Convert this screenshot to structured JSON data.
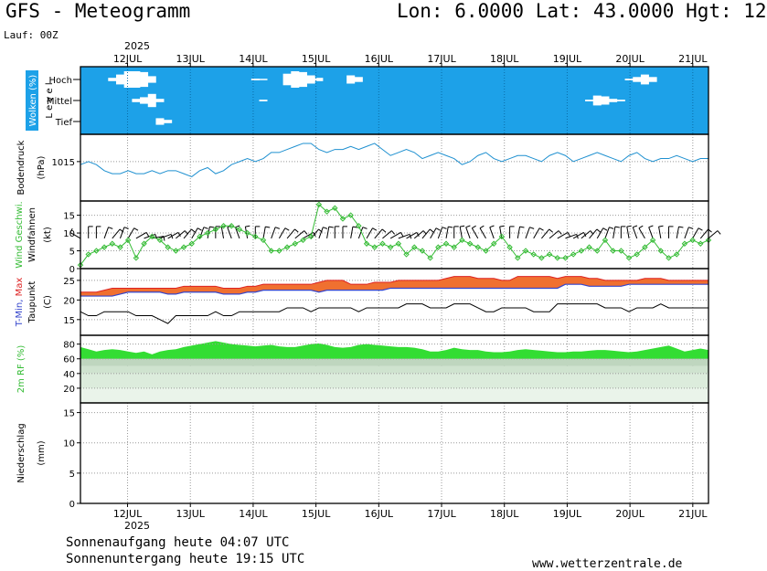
{
  "header": {
    "title": "GFS - Meteogramm",
    "location": "Lon: 6.0000  Lat: 43.0000  Hgt: 12",
    "run": "Lauf: 00Z",
    "year": "2025"
  },
  "footer": {
    "sunrise": "Sonnenaufgang heute 04:07 UTC",
    "sunset": "Sonnenuntergang heute 19:15 UTC",
    "site": "www.wetterzentrale.de"
  },
  "colors": {
    "cloud_bg": "#1da1e8",
    "pressure_line": "#1e90d0",
    "wind_line": "#33bb33",
    "tmax_fill": "#f07030",
    "tmin_line": "#3344cc",
    "tmax_line": "#dd2222",
    "dewpoint_line": "#000000",
    "humidity_fill": "#33dd33",
    "grid": "#999999"
  },
  "chart_data": {
    "type": "line",
    "x_axis": {
      "dates": [
        "12JUL",
        "13JUL",
        "14JUL",
        "15JUL",
        "16JUL",
        "17JUL",
        "18JUL",
        "19JUL",
        "20JUL",
        "21JUL"
      ],
      "start": "2025-07-11 06:00",
      "end": "2025-07-21 00:00",
      "step_hours": 3
    },
    "panels": [
      {
        "name": "clouds",
        "label": "Wolken (%)",
        "label2": "L e v e l",
        "levels": [
          "Hoch",
          "Mittel",
          "Tief"
        ],
        "high_cloud_pct": [
          0,
          0,
          0,
          0,
          20,
          60,
          100,
          100,
          90,
          40,
          0,
          0,
          0,
          0,
          0,
          0,
          0,
          0,
          0,
          0,
          0,
          0,
          10,
          5,
          0,
          0,
          70,
          100,
          90,
          50,
          20,
          0,
          0,
          0,
          50,
          30,
          0,
          0,
          0,
          0,
          0,
          0,
          0,
          0,
          0,
          0,
          0,
          0,
          0,
          0,
          0,
          0,
          0,
          0,
          0,
          0,
          0,
          0,
          0,
          0,
          0,
          0,
          0,
          0,
          0,
          0,
          0,
          0,
          0,
          10,
          30,
          60,
          30,
          0,
          0,
          0,
          0,
          0,
          0,
          0
        ],
        "mid_cloud_pct": [
          0,
          0,
          0,
          0,
          0,
          0,
          0,
          20,
          40,
          80,
          20,
          0,
          0,
          0,
          0,
          0,
          0,
          0,
          0,
          0,
          0,
          0,
          0,
          10,
          0,
          0,
          0,
          0,
          0,
          0,
          0,
          0,
          0,
          0,
          0,
          0,
          0,
          0,
          0,
          0,
          0,
          0,
          0,
          0,
          0,
          0,
          0,
          0,
          0,
          0,
          0,
          0,
          0,
          0,
          0,
          0,
          0,
          0,
          0,
          0,
          0,
          0,
          0,
          0,
          10,
          60,
          50,
          20,
          10,
          0,
          0,
          0,
          0,
          0,
          0,
          0,
          0,
          0,
          0,
          0
        ],
        "low_cloud_pct": [
          0,
          0,
          0,
          0,
          0,
          0,
          0,
          0,
          0,
          0,
          40,
          20,
          0,
          0,
          0,
          0,
          0,
          0,
          0,
          0,
          0,
          0,
          0,
          0,
          0,
          0,
          0,
          0,
          0,
          0,
          0,
          0,
          0,
          0,
          0,
          0,
          0,
          0,
          0,
          0,
          0,
          0,
          0,
          0,
          0,
          0,
          0,
          0,
          0,
          0,
          0,
          0,
          0,
          0,
          0,
          0,
          0,
          0,
          0,
          0,
          0,
          0,
          0,
          0,
          0,
          0,
          0,
          0,
          0,
          0,
          0,
          0,
          0,
          0,
          0,
          0,
          0,
          0,
          0,
          0
        ]
      },
      {
        "name": "pressure",
        "label": "Bodendruck",
        "label2": "(hPa)",
        "unit": "hPa",
        "ticks": [
          1015
        ],
        "ylim": [
          1002,
          1024
        ],
        "values": [
          1014,
          1015,
          1014,
          1012,
          1011,
          1011,
          1012,
          1011,
          1011,
          1012,
          1011,
          1012,
          1012,
          1011,
          1010,
          1012,
          1013,
          1011,
          1012,
          1014,
          1015,
          1016,
          1015,
          1016,
          1018,
          1018,
          1019,
          1020,
          1021,
          1021,
          1019,
          1018,
          1019,
          1019,
          1020,
          1019,
          1020,
          1021,
          1019,
          1017,
          1018,
          1019,
          1018,
          1016,
          1017,
          1018,
          1017,
          1016,
          1014,
          1015,
          1017,
          1018,
          1016,
          1015,
          1016,
          1017,
          1017,
          1016,
          1015,
          1017,
          1018,
          1017,
          1015,
          1016,
          1017,
          1018,
          1017,
          1016,
          1015,
          1017,
          1018,
          1016,
          1015,
          1016,
          1016,
          1017,
          1016,
          1015,
          1016,
          1016
        ]
      },
      {
        "name": "wind",
        "label": "Wind Geschwi.",
        "label2": "Windfahnen",
        "label3": "(kt)",
        "unit": "kt",
        "ticks": [
          0,
          5,
          10,
          15
        ],
        "ylim": [
          0,
          19
        ],
        "speed_kt": [
          1,
          4,
          5,
          6,
          7,
          6,
          8,
          3,
          7,
          9,
          8,
          6,
          5,
          6,
          7,
          9,
          10,
          11,
          12,
          12,
          11,
          10,
          9,
          8,
          5,
          5,
          6,
          7,
          8,
          9,
          18,
          16,
          17,
          14,
          15,
          12,
          7,
          6,
          7,
          6,
          7,
          4,
          6,
          5,
          3,
          6,
          7,
          6,
          8,
          7,
          6,
          5,
          7,
          9,
          6,
          3,
          5,
          4,
          3,
          4,
          3,
          3,
          4,
          5,
          6,
          5,
          8,
          5,
          5,
          3,
          4,
          6,
          8,
          5,
          3,
          4,
          7,
          8,
          7,
          8
        ],
        "barb_direction_deg": [
          120,
          180,
          180,
          200,
          220,
          200,
          210,
          240,
          250,
          260,
          250,
          240,
          230,
          220,
          210,
          200,
          190,
          180,
          170,
          160,
          160,
          170,
          180,
          190,
          200,
          210,
          220,
          230,
          240,
          220,
          200,
          190,
          180,
          180,
          190,
          200,
          210,
          220,
          230,
          240,
          250,
          240,
          230,
          220,
          210,
          200,
          190,
          180,
          170,
          160,
          150,
          150,
          160,
          170,
          180,
          190,
          200,
          210,
          220,
          230,
          240,
          250,
          240,
          230,
          220,
          210,
          200,
          190,
          180,
          170,
          160,
          150,
          160,
          170,
          180,
          190,
          200,
          210,
          220,
          230
        ]
      },
      {
        "name": "temperature",
        "label": "T-Min, Max",
        "label2": "Taupunkt",
        "label3": "(C)",
        "unit": "C",
        "ticks": [
          15,
          20,
          25
        ],
        "ylim": [
          11,
          28
        ],
        "tmin": [
          21,
          21,
          21,
          21,
          21,
          21.5,
          22,
          22,
          22,
          22,
          22,
          21.5,
          21.5,
          22,
          22,
          22,
          22,
          22,
          21.5,
          21.5,
          21.5,
          22,
          22,
          22.5,
          22.5,
          22.5,
          22.5,
          22.5,
          22.5,
          22.5,
          22,
          22.5,
          22.5,
          22.5,
          22.5,
          22.5,
          22.5,
          22.5,
          22.5,
          23,
          23,
          23,
          23,
          23,
          23,
          23,
          23,
          23,
          23,
          23,
          23,
          23,
          23,
          23,
          23,
          23,
          23,
          23,
          23,
          23,
          23,
          24,
          24,
          24,
          23.5,
          23.5,
          23.5,
          23.5,
          23.5,
          24,
          24,
          24,
          24,
          24,
          24,
          24,
          24,
          24,
          24,
          24
        ],
        "tmax": [
          22,
          22,
          22,
          22.5,
          23,
          23,
          23,
          23,
          23,
          23,
          23,
          23,
          23,
          23.5,
          23.5,
          23.5,
          23.5,
          23.5,
          23,
          23,
          23,
          23.5,
          23.5,
          24,
          24,
          24,
          24,
          24,
          24,
          24,
          24.5,
          25,
          25,
          25,
          24,
          24,
          24,
          24.5,
          24.5,
          24.5,
          25,
          25,
          25,
          25,
          25,
          25,
          25.5,
          26,
          26,
          26,
          25.5,
          25.5,
          25.5,
          25,
          25,
          26,
          26,
          26,
          26,
          26,
          25.5,
          26,
          26,
          26,
          25.5,
          25.5,
          25,
          25,
          25,
          25,
          25,
          25.5,
          25.5,
          25.5,
          25,
          25,
          25,
          25,
          25,
          25
        ],
        "dewpoint": [
          17,
          16,
          16,
          17,
          17,
          17,
          17,
          16,
          16,
          16,
          15,
          14,
          16,
          16,
          16,
          16,
          16,
          17,
          16,
          16,
          17,
          17,
          17,
          17,
          17,
          17,
          18,
          18,
          18,
          17,
          18,
          18,
          18,
          18,
          18,
          17,
          18,
          18,
          18,
          18,
          18,
          19,
          19,
          19,
          18,
          18,
          18,
          19,
          19,
          19,
          18,
          17,
          17,
          18,
          18,
          18,
          18,
          17,
          17,
          17,
          19,
          19,
          19,
          19,
          19,
          19,
          18,
          18,
          18,
          17,
          18,
          18,
          18,
          19,
          18,
          18,
          18,
          18,
          18,
          18
        ]
      },
      {
        "name": "humidity",
        "label": "2m RF (%)",
        "unit": "%",
        "ticks": [
          20,
          40,
          60,
          80
        ],
        "ylim": [
          0,
          92
        ],
        "values": [
          76,
          73,
          70,
          72,
          73,
          72,
          70,
          68,
          70,
          66,
          70,
          72,
          73,
          76,
          78,
          80,
          82,
          84,
          82,
          80,
          79,
          78,
          77,
          78,
          79,
          77,
          76,
          76,
          78,
          80,
          81,
          79,
          76,
          75,
          76,
          79,
          80,
          79,
          78,
          77,
          76,
          76,
          75,
          73,
          70,
          70,
          72,
          75,
          73,
          72,
          72,
          70,
          69,
          69,
          70,
          72,
          73,
          72,
          71,
          70,
          69,
          69,
          70,
          70,
          71,
          72,
          72,
          71,
          70,
          69,
          70,
          72,
          74,
          76,
          78,
          74,
          70,
          72,
          74,
          72
        ]
      },
      {
        "name": "precipitation",
        "label": "Niederschlag",
        "label2": "(mm)",
        "unit": "mm",
        "ticks": [
          0,
          5,
          10,
          15
        ],
        "ylim": [
          0,
          16.6
        ],
        "values": [
          0,
          0,
          0,
          0,
          0,
          0,
          0,
          0,
          0,
          0,
          0,
          0,
          0,
          0,
          0,
          0,
          0,
          0,
          0,
          0,
          0,
          0,
          0,
          0,
          0,
          0,
          0,
          0,
          0,
          0,
          0,
          0,
          0,
          0,
          0,
          0,
          0,
          0,
          0,
          0,
          0,
          0,
          0,
          0,
          0,
          0,
          0,
          0,
          0,
          0,
          0,
          0,
          0,
          0,
          0,
          0,
          0,
          0,
          0,
          0,
          0,
          0,
          0,
          0,
          0,
          0,
          0,
          0,
          0,
          0,
          0,
          0,
          0,
          0,
          0,
          0,
          0,
          0,
          0,
          0
        ]
      }
    ]
  }
}
